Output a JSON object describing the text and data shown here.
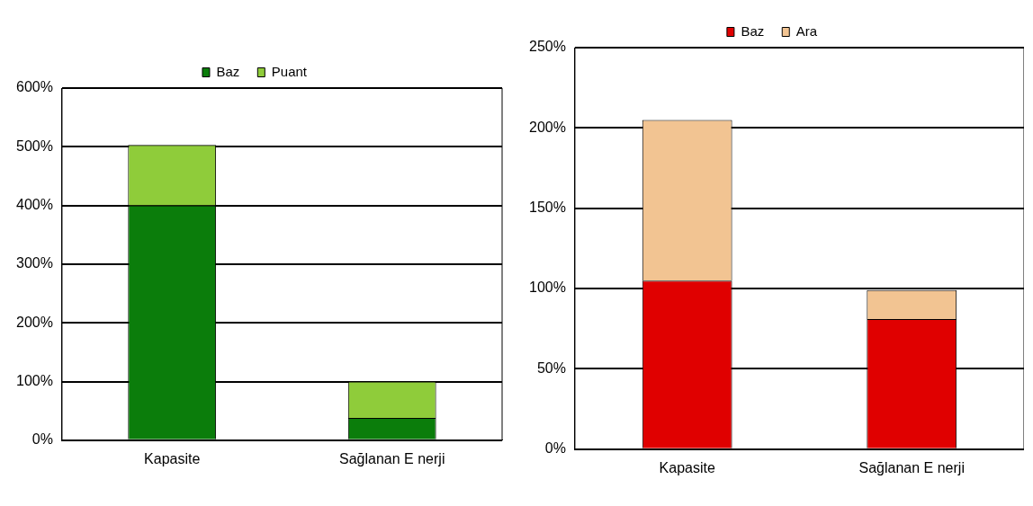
{
  "chart_data": [
    {
      "type": "bar",
      "stacked": true,
      "categories": [
        "Kapasite",
        "Sağlanan E nerji"
      ],
      "series": [
        {
          "name": "Baz",
          "color": "#0b7d0b",
          "values": [
            400,
            38
          ]
        },
        {
          "name": "Puant",
          "color": "#8fcc3a",
          "values": [
            103,
            62
          ]
        }
      ],
      "ylim": [
        0,
        600
      ],
      "yticks": [
        {
          "value": 0,
          "label": "0%"
        },
        {
          "value": 100,
          "label": "100%"
        },
        {
          "value": 200,
          "label": "200%"
        },
        {
          "value": 300,
          "label": "300%"
        },
        {
          "value": 400,
          "label": "400%"
        },
        {
          "value": 500,
          "label": "500%"
        },
        {
          "value": 600,
          "label": "600%"
        }
      ],
      "grid": "y",
      "legend": "top"
    },
    {
      "type": "bar",
      "stacked": true,
      "categories": [
        "Kapasite",
        "Sağlanan E nerji"
      ],
      "series": [
        {
          "name": "Baz",
          "color": "#e00000",
          "values": [
            105,
            81
          ]
        },
        {
          "name": "Ara",
          "color": "#f2c492",
          "values": [
            100,
            18
          ]
        }
      ],
      "ylim": [
        0,
        250
      ],
      "yticks": [
        {
          "value": 0,
          "label": "0%"
        },
        {
          "value": 50,
          "label": "50%"
        },
        {
          "value": 100,
          "label": "100%"
        },
        {
          "value": 150,
          "label": "150%"
        },
        {
          "value": 200,
          "label": "200%"
        },
        {
          "value": 250,
          "label": "250%"
        }
      ],
      "grid": "y",
      "legend": "top"
    }
  ]
}
